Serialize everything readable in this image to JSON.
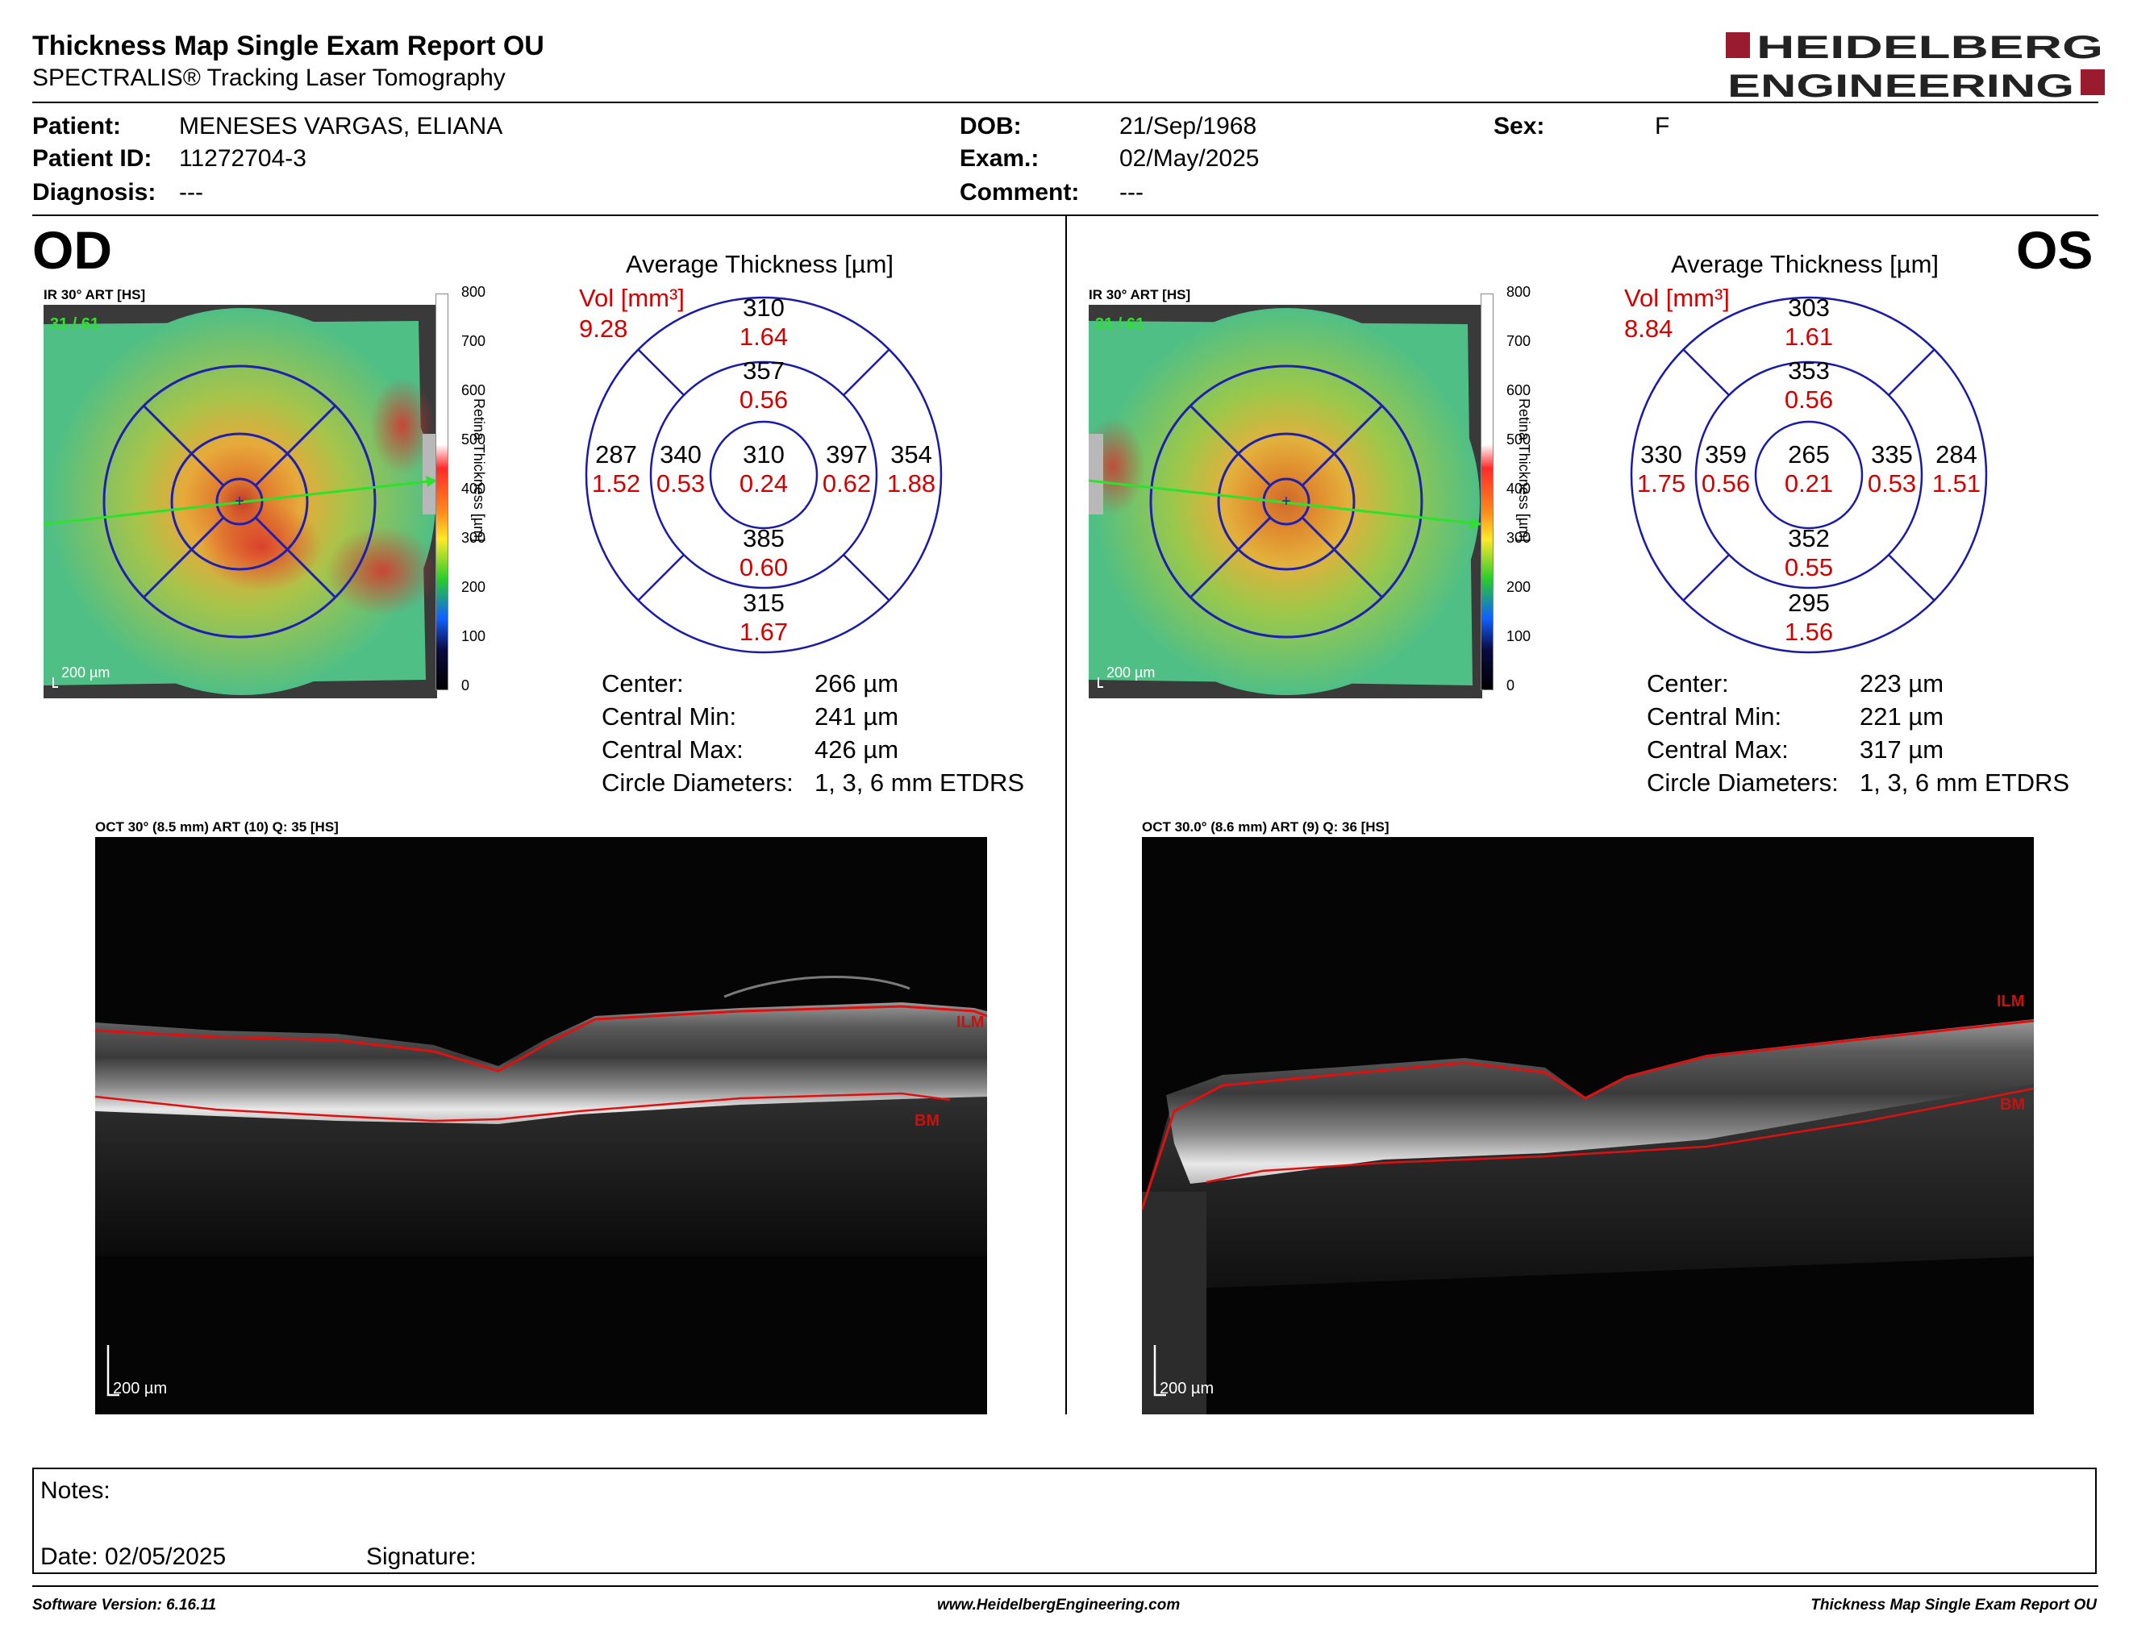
{
  "header": {
    "title": "Thickness Map Single Exam Report OU",
    "subtitle": "SPECTRALIS® Tracking Laser Tomography",
    "logo_line1": "HEIDELBERG",
    "logo_line2": "ENGINEERING"
  },
  "patient": {
    "patient_label": "Patient:",
    "patient_value": "MENESES VARGAS, ELIANA",
    "id_label": "Patient ID:",
    "id_value": "11272704-3",
    "diagnosis_label": "Diagnosis:",
    "diagnosis_value": "---",
    "dob_label": "DOB:",
    "dob_value": "21/Sep/1968",
    "exam_label": "Exam.:",
    "exam_value": "02/May/2025",
    "comment_label": "Comment:",
    "comment_value": "---",
    "sex_label": "Sex:",
    "sex_value": "F"
  },
  "od": {
    "eye": "OD",
    "ir_label": "IR 30° ART [HS]",
    "frame": "31 / 61",
    "scale": "200 µm",
    "colorbar_ticks": [
      "800",
      "700",
      "600",
      "500",
      "400",
      "300",
      "200",
      "100",
      "0"
    ],
    "colorbar_title": "Retina Thickness [µm]",
    "avg_title": "Average Thickness [µm]",
    "vol_label": "Vol [mm³]",
    "vol_total": "9.28",
    "etdrs": {
      "center": {
        "t": "310",
        "v": "0.24"
      },
      "inner_sup": {
        "t": "357",
        "v": "0.56"
      },
      "inner_inf": {
        "t": "385",
        "v": "0.60"
      },
      "inner_left": {
        "t": "340",
        "v": "0.53"
      },
      "inner_right": {
        "t": "397",
        "v": "0.62"
      },
      "outer_sup": {
        "t": "310",
        "v": "1.64"
      },
      "outer_inf": {
        "t": "315",
        "v": "1.67"
      },
      "outer_left": {
        "t": "287",
        "v": "1.52"
      },
      "outer_right": {
        "t": "354",
        "v": "1.88"
      }
    },
    "metrics": {
      "center_label": "Center:",
      "center_value": "266 µm",
      "min_label": "Central Min:",
      "min_value": "241 µm",
      "max_label": "Central Max:",
      "max_value": "426 µm",
      "diam_label": "Circle Diameters:",
      "diam_value": "1, 3, 6 mm ETDRS"
    },
    "oct_label": "OCT 30° (8.5 mm) ART (10) Q: 35 [HS]",
    "oct_ilm": "ILM",
    "oct_bm": "BM",
    "oct_scale": "200 µm"
  },
  "os": {
    "eye": "OS",
    "ir_label": "IR 30° ART [HS]",
    "frame": "31 / 61",
    "scale": "200 µm",
    "colorbar_ticks": [
      "800",
      "700",
      "600",
      "500",
      "400",
      "300",
      "200",
      "100",
      "0"
    ],
    "colorbar_title": "Retina Thickness [µm]",
    "avg_title": "Average Thickness [µm]",
    "vol_label": "Vol [mm³]",
    "vol_total": "8.84",
    "etdrs": {
      "center": {
        "t": "265",
        "v": "0.21"
      },
      "inner_sup": {
        "t": "353",
        "v": "0.56"
      },
      "inner_inf": {
        "t": "352",
        "v": "0.55"
      },
      "inner_left": {
        "t": "359",
        "v": "0.56"
      },
      "inner_right": {
        "t": "335",
        "v": "0.53"
      },
      "outer_sup": {
        "t": "303",
        "v": "1.61"
      },
      "outer_inf": {
        "t": "295",
        "v": "1.56"
      },
      "outer_left": {
        "t": "330",
        "v": "1.75"
      },
      "outer_right": {
        "t": "284",
        "v": "1.51"
      }
    },
    "metrics": {
      "center_label": "Center:",
      "center_value": "223 µm",
      "min_label": "Central Min:",
      "min_value": "221 µm",
      "max_label": "Central Max:",
      "max_value": "317 µm",
      "diam_label": "Circle Diameters:",
      "diam_value": "1, 3, 6 mm ETDRS"
    },
    "oct_label": "OCT 30.0° (8.6 mm) ART (9) Q: 36 [HS]",
    "oct_ilm": "ILM",
    "oct_bm": "BM",
    "oct_scale": "200 µm"
  },
  "notes": {
    "notes_label": "Notes:",
    "date_label": "Date: 02/05/2025",
    "signature_label": "Signature:"
  },
  "footer": {
    "software": "Software Version: 6.16.11",
    "website": "www.HeidelbergEngineering.com",
    "report_name": "Thickness Map Single Exam Report OU"
  },
  "colors": {
    "etdrs_circle": "#1a1aa8",
    "volume_text": "#d40000",
    "logo": "#9b1b2e",
    "segmentation": "#e01010",
    "frame_text": "#30e030"
  }
}
